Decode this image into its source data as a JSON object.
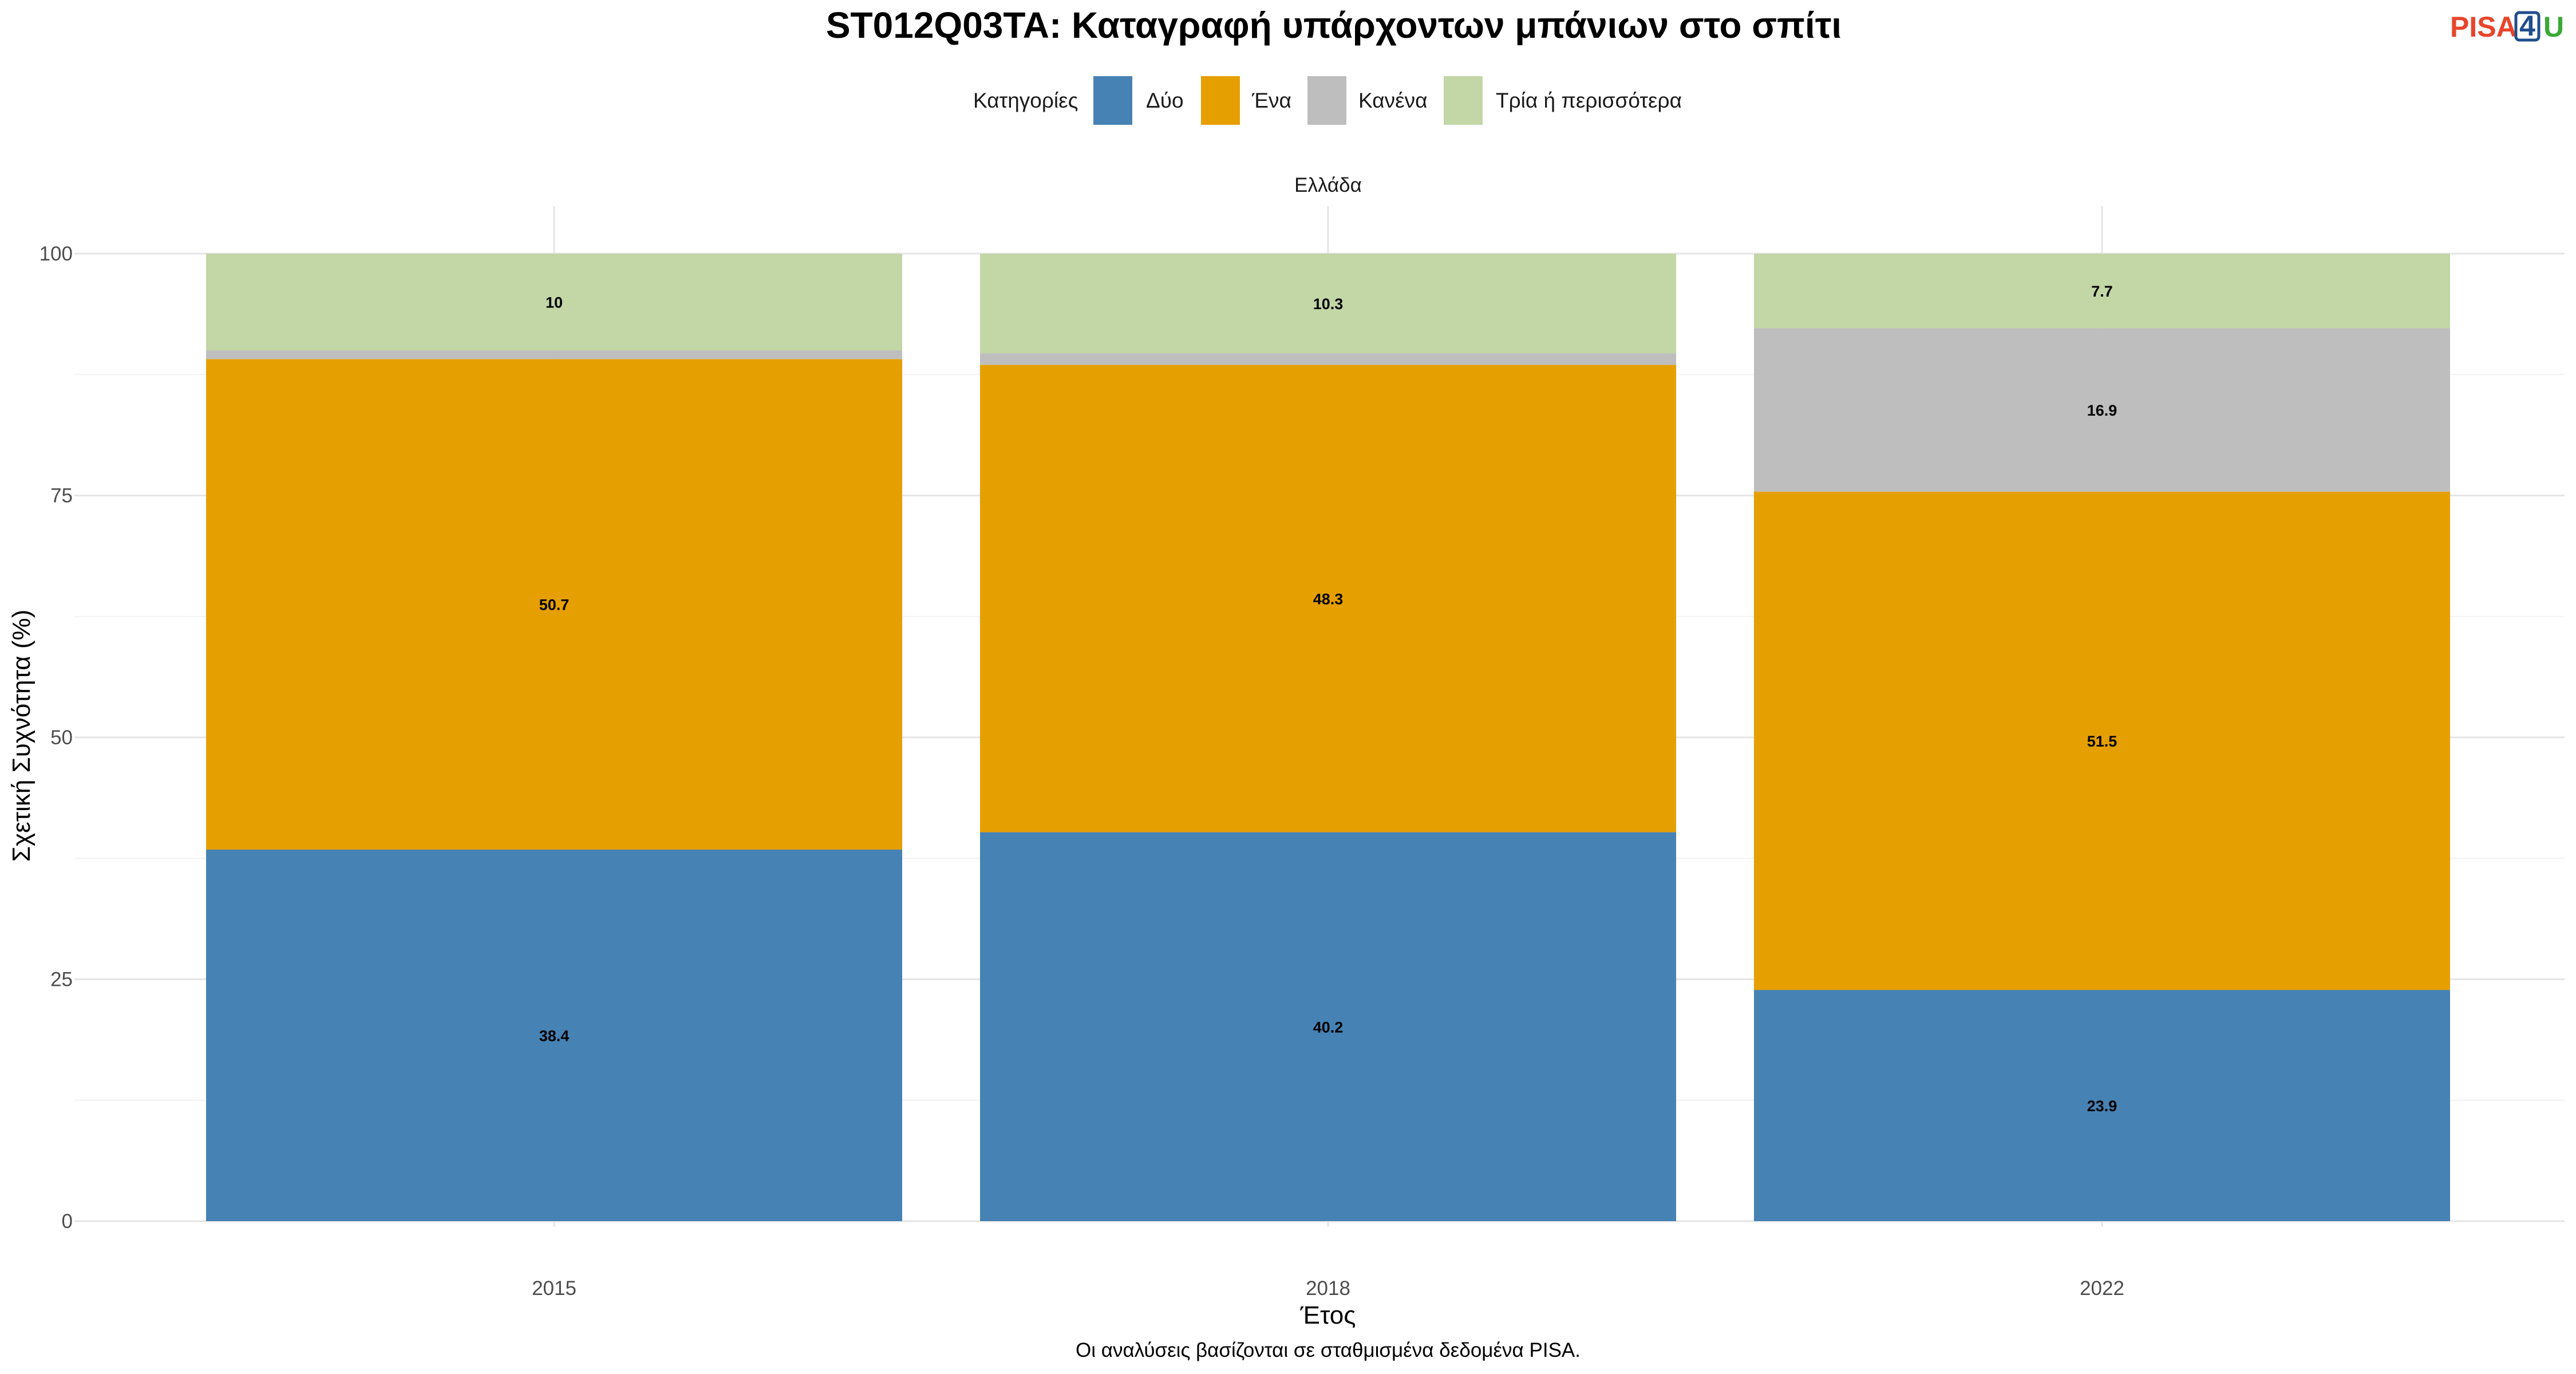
{
  "logo": {
    "text_left": "PISA",
    "text_mid": "4",
    "text_right": "U",
    "color_left": "#e8452c",
    "color_mid": "#1f4e8c",
    "color_right": "#3aa935"
  },
  "chart_data": {
    "type": "bar",
    "stacked": true,
    "title": "ST012Q03TA: Καταγραφή υπάρχοντων μπάνιων στο σπίτι",
    "facet": "Ελλάδα",
    "legend_title": "Κατηγορίες",
    "legend_position": "top",
    "xlabel": "Έτος",
    "ylabel": "Σχετική Συχνότητα (%)",
    "caption": "Οι αναλύσεις βασίζονται σε σταθμισμένα δεδομένα PISA.",
    "ylim": [
      0,
      100
    ],
    "yticks": [
      "0",
      "25",
      "50",
      "75",
      "100"
    ],
    "grid": true,
    "categories": [
      "2015",
      "2018",
      "2022"
    ],
    "series": [
      {
        "name": "Δύο",
        "color": "#4682b4",
        "values": [
          38.4,
          40.2,
          23.9
        ],
        "labels": [
          "38.4",
          "40.2",
          "23.9"
        ]
      },
      {
        "name": "Ένα",
        "color": "#e69f00",
        "values": [
          50.7,
          48.3,
          51.5
        ],
        "labels": [
          "50.7",
          "48.3",
          "51.5"
        ]
      },
      {
        "name": "Κανένα",
        "color": "#bebebe",
        "values": [
          0.9,
          1.2,
          16.9
        ],
        "labels": [
          "",
          "",
          "16.9"
        ]
      },
      {
        "name": "Τρία ή περισσότερα",
        "color": "#c2d6a6",
        "values": [
          10,
          10.3,
          7.7
        ],
        "labels": [
          "10",
          "10.3",
          "7.7"
        ]
      }
    ]
  }
}
